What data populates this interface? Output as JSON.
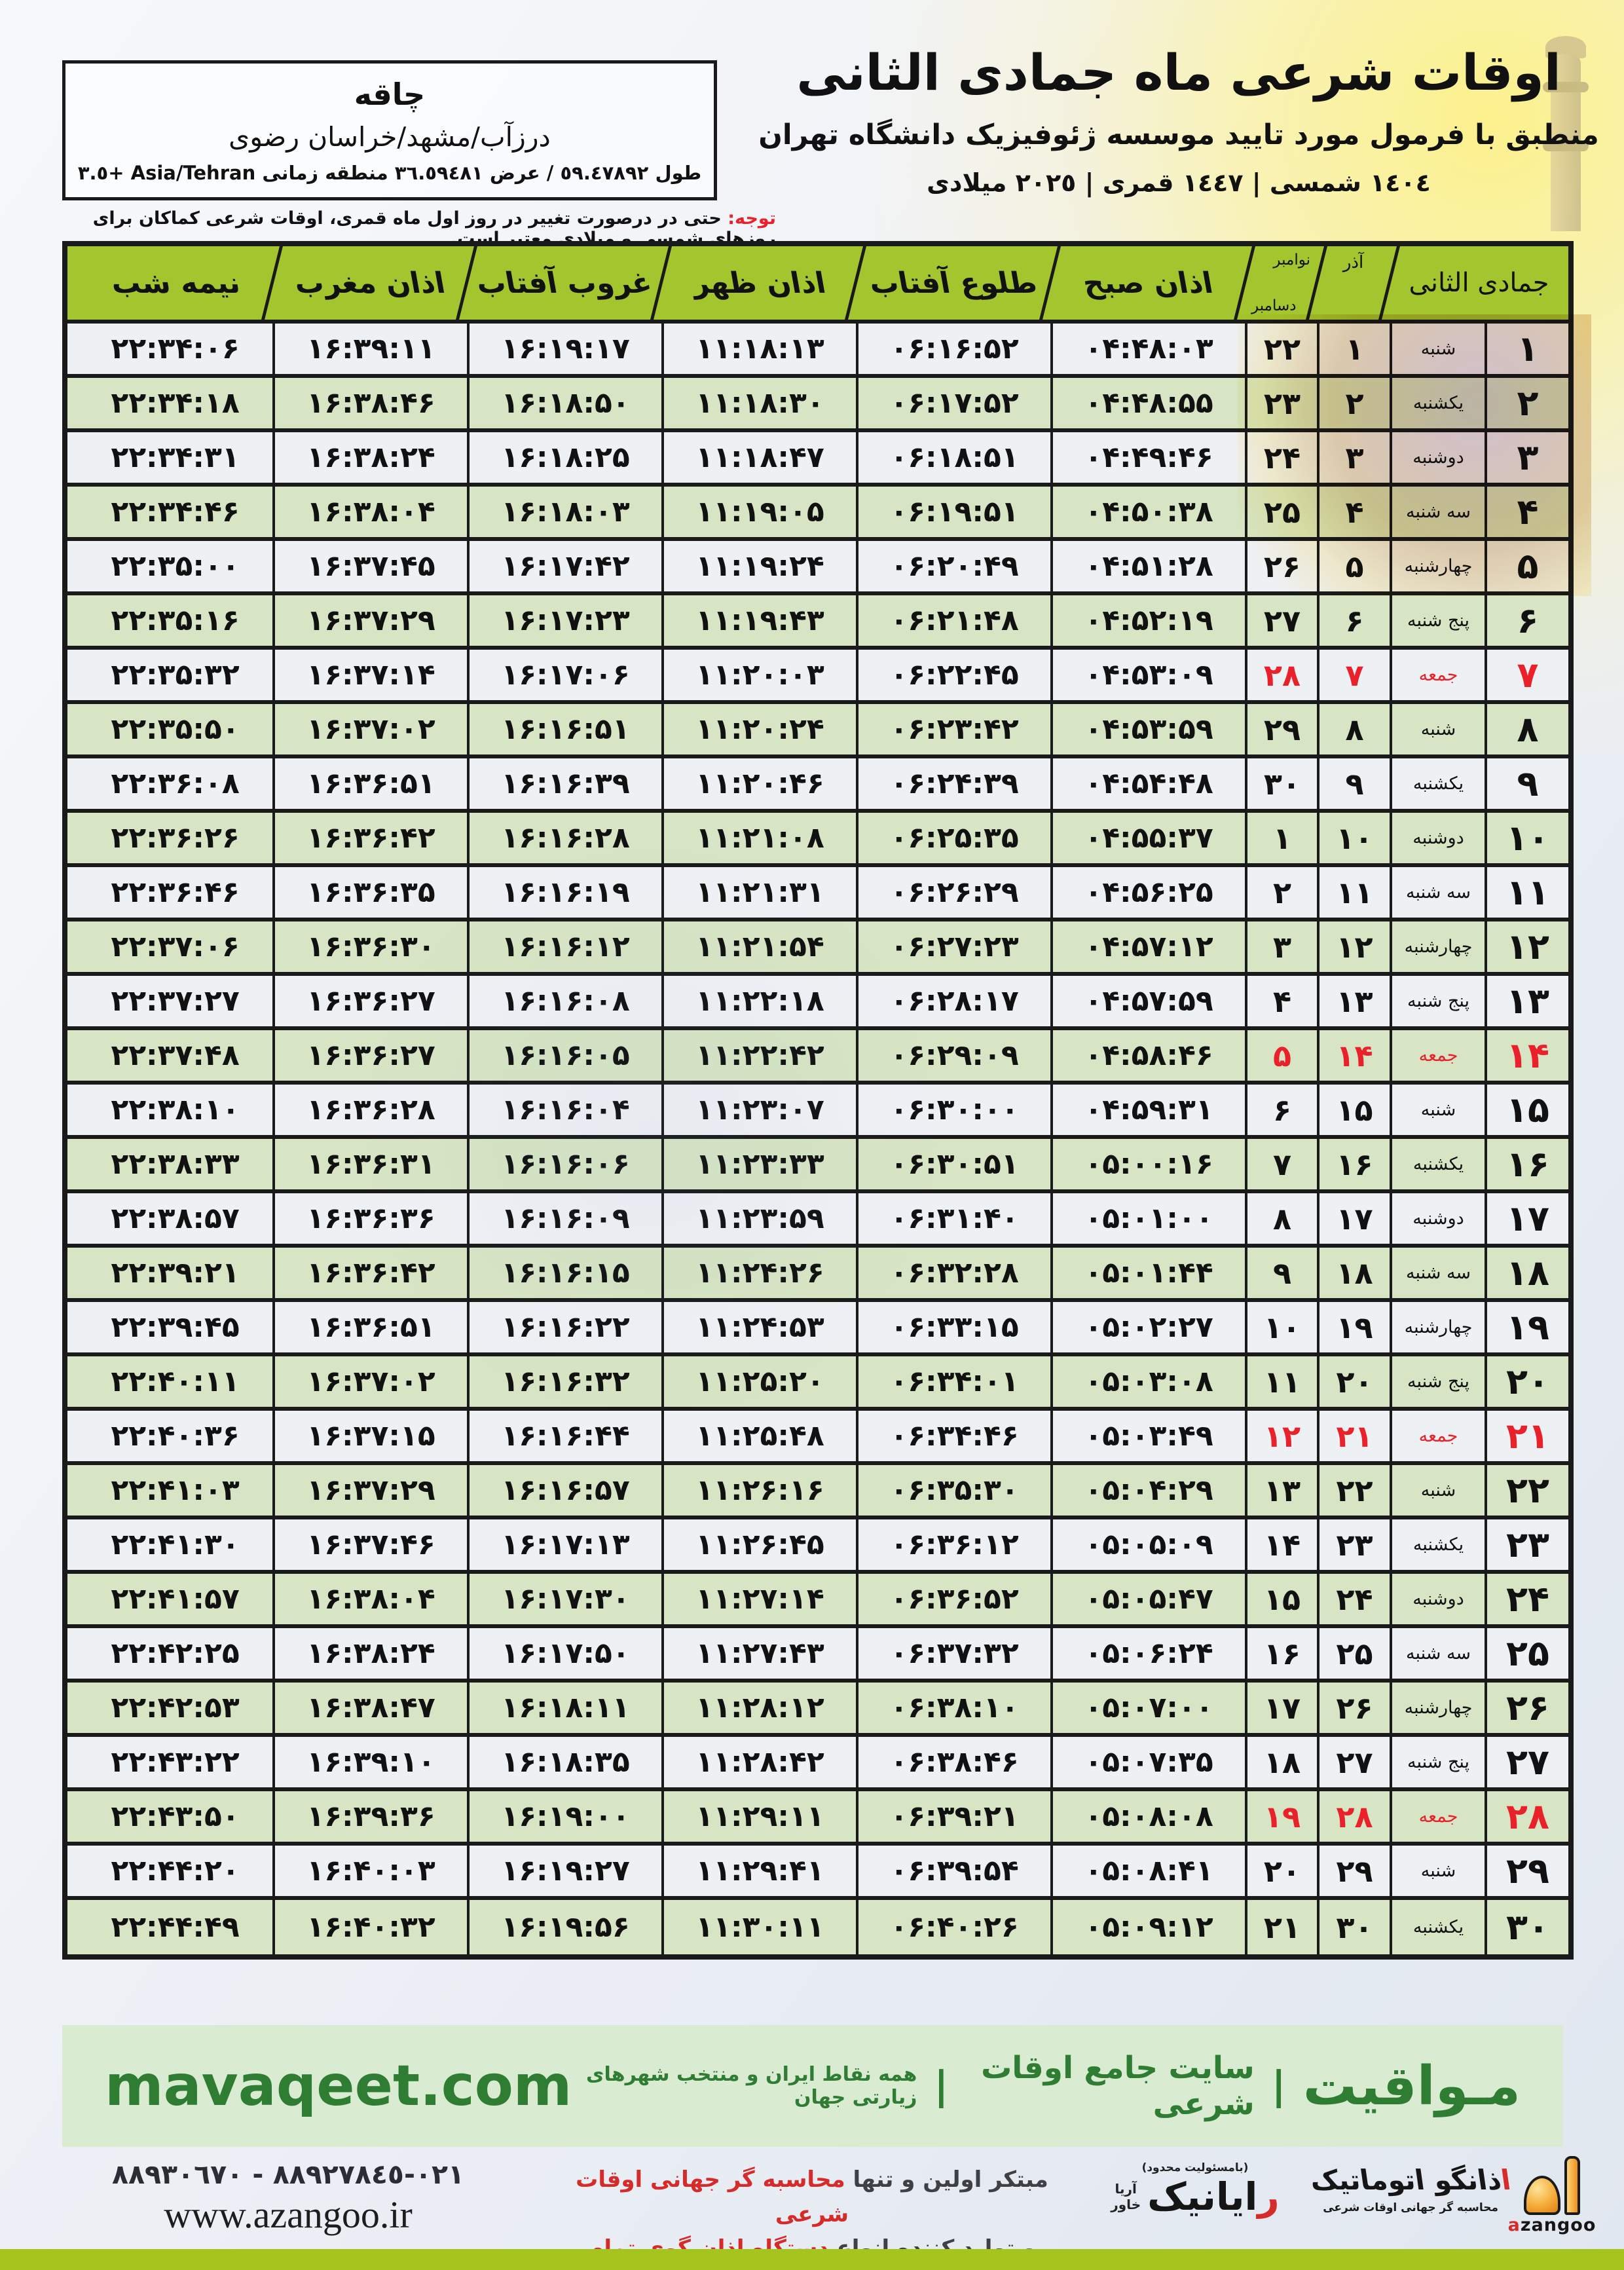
{
  "header": {
    "title": "اوقات شرعی ماه جمادی الثانی",
    "subtitle": "منطبق با فرمول مورد تایید موسسه ژئوفیزیک دانشگاه تهران",
    "years": "١٤٠٤ شمسی | ١٤٤٧ قمری | ٢٠٢٥ میلادی"
  },
  "location": {
    "name": "چاقه",
    "region": "درزآب/مشهد/خراسان رضوی",
    "coordinates": "طول ٥٩.٤٧٨٩٢ / عرض ٣٦.٥٩٤٨١ منطقه زمانی ‎Asia/Tehran +٣.٥‎"
  },
  "note": {
    "label": "توجه:",
    "text": " حتی در درصورت تغییر در روز اول ماه قمری، اوقات شرعی کماکان برای روزهای شمسی و میلادی معتبر است."
  },
  "table": {
    "headers": {
      "month": "جمادی الثانی",
      "azar": "آذر",
      "nov": "نوامبر",
      "dec": "دسامبر",
      "fajr": "اذان صبح",
      "sunrise": "طلوع آفتاب",
      "dhuhr": "اذان ظهر",
      "sunset": "غروب آفتاب",
      "maghrib": "اذان مغرب",
      "midnight": "نیمه شب"
    },
    "rows": [
      {
        "d": "۱",
        "w": "شنبه",
        "a": "۱",
        "g": "۲۲",
        "fajr": "۰۴:۴۸:۰۳",
        "rise": "۰۶:۱۶:۵۲",
        "noon": "۱۱:۱۸:۱۳",
        "set": "۱۶:۱۹:۱۷",
        "magh": "۱۶:۳۹:۱۱",
        "mid": "۲۲:۳۴:۰۶",
        "fri": false
      },
      {
        "d": "۲",
        "w": "یکشنبه",
        "a": "۲",
        "g": "۲۳",
        "fajr": "۰۴:۴۸:۵۵",
        "rise": "۰۶:۱۷:۵۲",
        "noon": "۱۱:۱۸:۳۰",
        "set": "۱۶:۱۸:۵۰",
        "magh": "۱۶:۳۸:۴۶",
        "mid": "۲۲:۳۴:۱۸",
        "fri": false
      },
      {
        "d": "۳",
        "w": "دوشنبه",
        "a": "۳",
        "g": "۲۴",
        "fajr": "۰۴:۴۹:۴۶",
        "rise": "۰۶:۱۸:۵۱",
        "noon": "۱۱:۱۸:۴۷",
        "set": "۱۶:۱۸:۲۵",
        "magh": "۱۶:۳۸:۲۴",
        "mid": "۲۲:۳۴:۳۱",
        "fri": false
      },
      {
        "d": "۴",
        "w": "سه شنبه",
        "a": "۴",
        "g": "۲۵",
        "fajr": "۰۴:۵۰:۳۸",
        "rise": "۰۶:۱۹:۵۱",
        "noon": "۱۱:۱۹:۰۵",
        "set": "۱۶:۱۸:۰۳",
        "magh": "۱۶:۳۸:۰۴",
        "mid": "۲۲:۳۴:۴۶",
        "fri": false
      },
      {
        "d": "۵",
        "w": "چهارشنبه",
        "a": "۵",
        "g": "۲۶",
        "fajr": "۰۴:۵۱:۲۸",
        "rise": "۰۶:۲۰:۴۹",
        "noon": "۱۱:۱۹:۲۴",
        "set": "۱۶:۱۷:۴۲",
        "magh": "۱۶:۳۷:۴۵",
        "mid": "۲۲:۳۵:۰۰",
        "fri": false
      },
      {
        "d": "۶",
        "w": "پنج شنبه",
        "a": "۶",
        "g": "۲۷",
        "fajr": "۰۴:۵۲:۱۹",
        "rise": "۰۶:۲۱:۴۸",
        "noon": "۱۱:۱۹:۴۳",
        "set": "۱۶:۱۷:۲۳",
        "magh": "۱۶:۳۷:۲۹",
        "mid": "۲۲:۳۵:۱۶",
        "fri": false
      },
      {
        "d": "۷",
        "w": "جمعه",
        "a": "۷",
        "g": "۲۸",
        "fajr": "۰۴:۵۳:۰۹",
        "rise": "۰۶:۲۲:۴۵",
        "noon": "۱۱:۲۰:۰۳",
        "set": "۱۶:۱۷:۰۶",
        "magh": "۱۶:۳۷:۱۴",
        "mid": "۲۲:۳۵:۳۲",
        "fri": true
      },
      {
        "d": "۸",
        "w": "شنبه",
        "a": "۸",
        "g": "۲۹",
        "fajr": "۰۴:۵۳:۵۹",
        "rise": "۰۶:۲۳:۴۲",
        "noon": "۱۱:۲۰:۲۴",
        "set": "۱۶:۱۶:۵۱",
        "magh": "۱۶:۳۷:۰۲",
        "mid": "۲۲:۳۵:۵۰",
        "fri": false
      },
      {
        "d": "۹",
        "w": "یکشنبه",
        "a": "۹",
        "g": "۳۰",
        "fajr": "۰۴:۵۴:۴۸",
        "rise": "۰۶:۲۴:۳۹",
        "noon": "۱۱:۲۰:۴۶",
        "set": "۱۶:۱۶:۳۹",
        "magh": "۱۶:۳۶:۵۱",
        "mid": "۲۲:۳۶:۰۸",
        "fri": false
      },
      {
        "d": "۱۰",
        "w": "دوشنبه",
        "a": "۱۰",
        "g": "۱",
        "fajr": "۰۴:۵۵:۳۷",
        "rise": "۰۶:۲۵:۳۵",
        "noon": "۱۱:۲۱:۰۸",
        "set": "۱۶:۱۶:۲۸",
        "magh": "۱۶:۳۶:۴۲",
        "mid": "۲۲:۳۶:۲۶",
        "fri": false
      },
      {
        "d": "۱۱",
        "w": "سه شنبه",
        "a": "۱۱",
        "g": "۲",
        "fajr": "۰۴:۵۶:۲۵",
        "rise": "۰۶:۲۶:۲۹",
        "noon": "۱۱:۲۱:۳۱",
        "set": "۱۶:۱۶:۱۹",
        "magh": "۱۶:۳۶:۳۵",
        "mid": "۲۲:۳۶:۴۶",
        "fri": false
      },
      {
        "d": "۱۲",
        "w": "چهارشنبه",
        "a": "۱۲",
        "g": "۳",
        "fajr": "۰۴:۵۷:۱۲",
        "rise": "۰۶:۲۷:۲۳",
        "noon": "۱۱:۲۱:۵۴",
        "set": "۱۶:۱۶:۱۲",
        "magh": "۱۶:۳۶:۳۰",
        "mid": "۲۲:۳۷:۰۶",
        "fri": false
      },
      {
        "d": "۱۳",
        "w": "پنج شنبه",
        "a": "۱۳",
        "g": "۴",
        "fajr": "۰۴:۵۷:۵۹",
        "rise": "۰۶:۲۸:۱۷",
        "noon": "۱۱:۲۲:۱۸",
        "set": "۱۶:۱۶:۰۸",
        "magh": "۱۶:۳۶:۲۷",
        "mid": "۲۲:۳۷:۲۷",
        "fri": false
      },
      {
        "d": "۱۴",
        "w": "جمعه",
        "a": "۱۴",
        "g": "۵",
        "fajr": "۰۴:۵۸:۴۶",
        "rise": "۰۶:۲۹:۰۹",
        "noon": "۱۱:۲۲:۴۲",
        "set": "۱۶:۱۶:۰۵",
        "magh": "۱۶:۳۶:۲۷",
        "mid": "۲۲:۳۷:۴۸",
        "fri": true
      },
      {
        "d": "۱۵",
        "w": "شنبه",
        "a": "۱۵",
        "g": "۶",
        "fajr": "۰۴:۵۹:۳۱",
        "rise": "۰۶:۳۰:۰۰",
        "noon": "۱۱:۲۳:۰۷",
        "set": "۱۶:۱۶:۰۴",
        "magh": "۱۶:۳۶:۲۸",
        "mid": "۲۲:۳۸:۱۰",
        "fri": false
      },
      {
        "d": "۱۶",
        "w": "یکشنبه",
        "a": "۱۶",
        "g": "۷",
        "fajr": "۰۵:۰۰:۱۶",
        "rise": "۰۶:۳۰:۵۱",
        "noon": "۱۱:۲۳:۳۳",
        "set": "۱۶:۱۶:۰۶",
        "magh": "۱۶:۳۶:۳۱",
        "mid": "۲۲:۳۸:۳۳",
        "fri": false
      },
      {
        "d": "۱۷",
        "w": "دوشنبه",
        "a": "۱۷",
        "g": "۸",
        "fajr": "۰۵:۰۱:۰۰",
        "rise": "۰۶:۳۱:۴۰",
        "noon": "۱۱:۲۳:۵۹",
        "set": "۱۶:۱۶:۰۹",
        "magh": "۱۶:۳۶:۳۶",
        "mid": "۲۲:۳۸:۵۷",
        "fri": false
      },
      {
        "d": "۱۸",
        "w": "سه شنبه",
        "a": "۱۸",
        "g": "۹",
        "fajr": "۰۵:۰۱:۴۴",
        "rise": "۰۶:۳۲:۲۸",
        "noon": "۱۱:۲۴:۲۶",
        "set": "۱۶:۱۶:۱۵",
        "magh": "۱۶:۳۶:۴۲",
        "mid": "۲۲:۳۹:۲۱",
        "fri": false
      },
      {
        "d": "۱۹",
        "w": "چهارشنبه",
        "a": "۱۹",
        "g": "۱۰",
        "fajr": "۰۵:۰۲:۲۷",
        "rise": "۰۶:۳۳:۱۵",
        "noon": "۱۱:۲۴:۵۳",
        "set": "۱۶:۱۶:۲۲",
        "magh": "۱۶:۳۶:۵۱",
        "mid": "۲۲:۳۹:۴۵",
        "fri": false
      },
      {
        "d": "۲۰",
        "w": "پنج شنبه",
        "a": "۲۰",
        "g": "۱۱",
        "fajr": "۰۵:۰۳:۰۸",
        "rise": "۰۶:۳۴:۰۱",
        "noon": "۱۱:۲۵:۲۰",
        "set": "۱۶:۱۶:۳۲",
        "magh": "۱۶:۳۷:۰۲",
        "mid": "۲۲:۴۰:۱۱",
        "fri": false
      },
      {
        "d": "۲۱",
        "w": "جمعه",
        "a": "۲۱",
        "g": "۱۲",
        "fajr": "۰۵:۰۳:۴۹",
        "rise": "۰۶:۳۴:۴۶",
        "noon": "۱۱:۲۵:۴۸",
        "set": "۱۶:۱۶:۴۴",
        "magh": "۱۶:۳۷:۱۵",
        "mid": "۲۲:۴۰:۳۶",
        "fri": true
      },
      {
        "d": "۲۲",
        "w": "شنبه",
        "a": "۲۲",
        "g": "۱۳",
        "fajr": "۰۵:۰۴:۲۹",
        "rise": "۰۶:۳۵:۳۰",
        "noon": "۱۱:۲۶:۱۶",
        "set": "۱۶:۱۶:۵۷",
        "magh": "۱۶:۳۷:۲۹",
        "mid": "۲۲:۴۱:۰۳",
        "fri": false
      },
      {
        "d": "۲۳",
        "w": "یکشنبه",
        "a": "۲۳",
        "g": "۱۴",
        "fajr": "۰۵:۰۵:۰۹",
        "rise": "۰۶:۳۶:۱۲",
        "noon": "۱۱:۲۶:۴۵",
        "set": "۱۶:۱۷:۱۳",
        "magh": "۱۶:۳۷:۴۶",
        "mid": "۲۲:۴۱:۳۰",
        "fri": false
      },
      {
        "d": "۲۴",
        "w": "دوشنبه",
        "a": "۲۴",
        "g": "۱۵",
        "fajr": "۰۵:۰۵:۴۷",
        "rise": "۰۶:۳۶:۵۲",
        "noon": "۱۱:۲۷:۱۴",
        "set": "۱۶:۱۷:۳۰",
        "magh": "۱۶:۳۸:۰۴",
        "mid": "۲۲:۴۱:۵۷",
        "fri": false
      },
      {
        "d": "۲۵",
        "w": "سه شنبه",
        "a": "۲۵",
        "g": "۱۶",
        "fajr": "۰۵:۰۶:۲۴",
        "rise": "۰۶:۳۷:۳۲",
        "noon": "۱۱:۲۷:۴۳",
        "set": "۱۶:۱۷:۵۰",
        "magh": "۱۶:۳۸:۲۴",
        "mid": "۲۲:۴۲:۲۵",
        "fri": false
      },
      {
        "d": "۲۶",
        "w": "چهارشنبه",
        "a": "۲۶",
        "g": "۱۷",
        "fajr": "۰۵:۰۷:۰۰",
        "rise": "۰۶:۳۸:۱۰",
        "noon": "۱۱:۲۸:۱۲",
        "set": "۱۶:۱۸:۱۱",
        "magh": "۱۶:۳۸:۴۷",
        "mid": "۲۲:۴۲:۵۳",
        "fri": false
      },
      {
        "d": "۲۷",
        "w": "پنج شنبه",
        "a": "۲۷",
        "g": "۱۸",
        "fajr": "۰۵:۰۷:۳۵",
        "rise": "۰۶:۳۸:۴۶",
        "noon": "۱۱:۲۸:۴۲",
        "set": "۱۶:۱۸:۳۵",
        "magh": "۱۶:۳۹:۱۰",
        "mid": "۲۲:۴۳:۲۲",
        "fri": false
      },
      {
        "d": "۲۸",
        "w": "جمعه",
        "a": "۲۸",
        "g": "۱۹",
        "fajr": "۰۵:۰۸:۰۸",
        "rise": "۰۶:۳۹:۲۱",
        "noon": "۱۱:۲۹:۱۱",
        "set": "۱۶:۱۹:۰۰",
        "magh": "۱۶:۳۹:۳۶",
        "mid": "۲۲:۴۳:۵۰",
        "fri": true
      },
      {
        "d": "۲۹",
        "w": "شنبه",
        "a": "۲۹",
        "g": "۲۰",
        "fajr": "۰۵:۰۸:۴۱",
        "rise": "۰۶:۳۹:۵۴",
        "noon": "۱۱:۲۹:۴۱",
        "set": "۱۶:۱۹:۲۷",
        "magh": "۱۶:۴۰:۰۳",
        "mid": "۲۲:۴۴:۲۰",
        "fri": false
      },
      {
        "d": "۳۰",
        "w": "یکشنبه",
        "a": "۳۰",
        "g": "۲۱",
        "fajr": "۰۵:۰۹:۱۲",
        "rise": "۰۶:۴۰:۲۶",
        "noon": "۱۱:۳۰:۱۱",
        "set": "۱۶:۱۹:۵۶",
        "magh": "۱۶:۴۰:۳۲",
        "mid": "۲۲:۴۴:۴۹",
        "fri": false
      }
    ]
  },
  "footer": {
    "brand": "مـواقیت",
    "sep": "|",
    "site_label": "سایت جامع اوقات شرعی",
    "tagline": "همه نقاط ایران و منتخب شهرهای زیارتی جهان",
    "domain": "mavaqeet.com"
  },
  "contact": {
    "phone": "٠٢١-٨٨٩٢٧٨٤٥ - ٨٨٩٣٠٦٧٠",
    "website": "www.azangoo.ir",
    "line1_gray": "مبتکر اولین و تنها ",
    "line1_red": "محاسبه گر جهانی اوقات شرعی",
    "line2_gray": "و تولید کننده انواع ",
    "line2_red": "دستگاه اذان گوی تمام خودکار ماهواره ای"
  },
  "logos": {
    "rayanik_note": "(بامسئولیت محدود)",
    "rayanik_first": "ر",
    "rayanik_rest": "ایانیک",
    "rayanik_sub1": "آریا",
    "rayanik_sub2": "خاور",
    "azangoo_fa_first": "ا",
    "azangoo_fa_rest": "ذانگو اتوماتیک",
    "azangoo_caption": "محاسبه گر جهانی اوقات شرعی",
    "azangoo_en_a": "a",
    "azangoo_en_rest": "zangoo"
  },
  "colors": {
    "header_green": "#a3c52e",
    "row_green": "#d7e5c4",
    "row_white": "#eef1f4",
    "border_black": "#1a1a1a",
    "friday_red": "#e8212a",
    "footer_band_bg": "#d9ecd2",
    "footer_text_green": "#2f7c33",
    "bottom_bar_green": "#a6c41e",
    "contact_red": "#d62b2b",
    "logo_orange": "#ef8f1a"
  }
}
